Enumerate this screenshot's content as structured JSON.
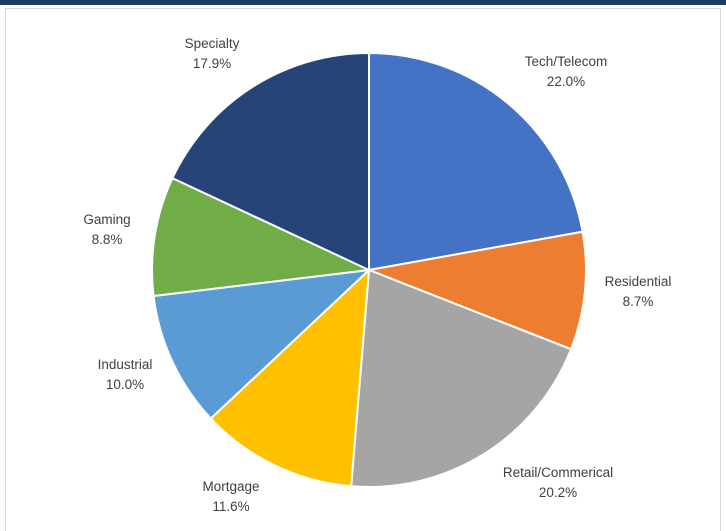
{
  "chart_data": {
    "type": "pie",
    "title": "",
    "slices": [
      {
        "label": "Tech/Telecom",
        "percent_label": "22.0%",
        "value": 22.0,
        "color": "#4472c4"
      },
      {
        "label": "Residential",
        "percent_label": "8.7%",
        "value": 8.7,
        "color": "#ed7d31"
      },
      {
        "label": "Retail/Commerical",
        "percent_label": "20.2%",
        "value": 20.2,
        "color": "#a5a5a5"
      },
      {
        "label": "Mortgage",
        "percent_label": "11.6%",
        "value": 11.6,
        "color": "#ffc000"
      },
      {
        "label": "Industrial",
        "percent_label": "10.0%",
        "value": 10.0,
        "color": "#5b9bd5"
      },
      {
        "label": "Gaming",
        "percent_label": "8.8%",
        "value": 8.8,
        "color": "#70ad47"
      },
      {
        "label": "Specialty",
        "percent_label": "17.9%",
        "value": 17.9,
        "color": "#264478"
      }
    ],
    "start_angle": "12 o'clock",
    "direction": "clockwise",
    "legend": "none",
    "labels": "outside slices, category name above percentage"
  }
}
